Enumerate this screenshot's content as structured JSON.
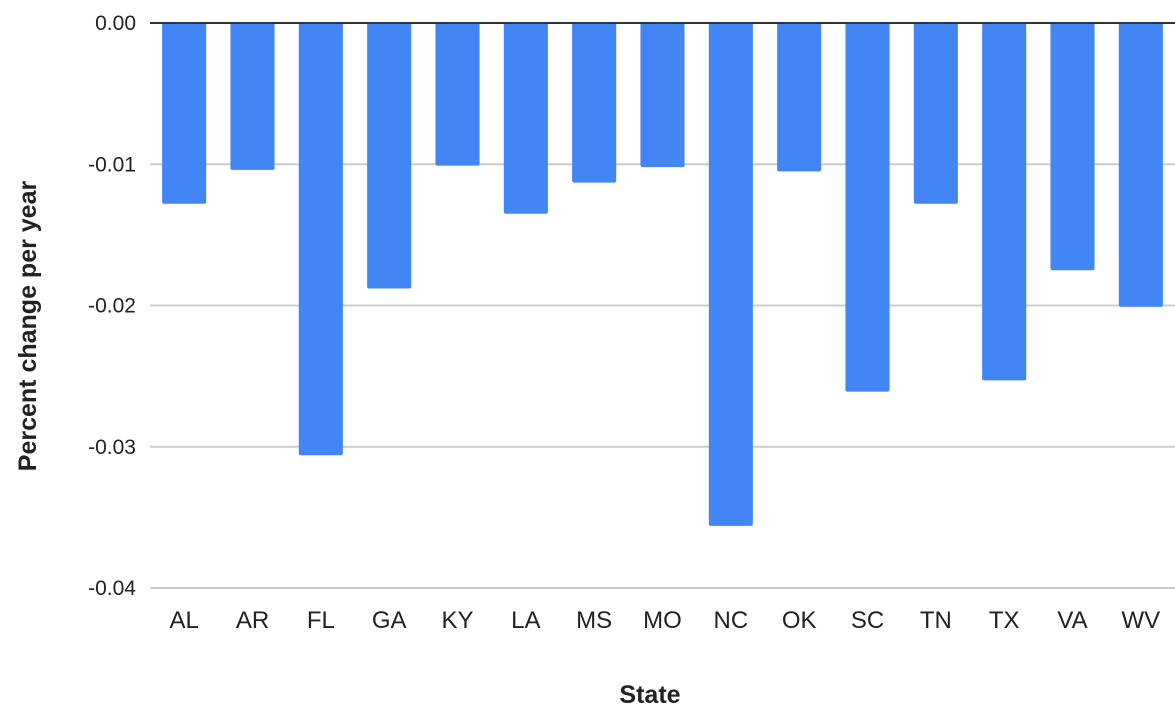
{
  "chart_data": {
    "type": "bar",
    "title": "",
    "xlabel": "State",
    "ylabel": "Percent change per year",
    "categories": [
      "AL",
      "AR",
      "FL",
      "GA",
      "KY",
      "LA",
      "MS",
      "MO",
      "NC",
      "OK",
      "SC",
      "TN",
      "TX",
      "VA",
      "WV"
    ],
    "values": [
      -0.0128,
      -0.0104,
      -0.0306,
      -0.0188,
      -0.0101,
      -0.0135,
      -0.0113,
      -0.0102,
      -0.0356,
      -0.0105,
      -0.0261,
      -0.0128,
      -0.0253,
      -0.0175,
      -0.0201
    ],
    "ylim": [
      -0.04,
      0.0
    ],
    "y_ticks": [
      0.0,
      -0.01,
      -0.02,
      -0.03,
      -0.04
    ],
    "y_tick_labels": [
      "0.00",
      "-0.01",
      "-0.02",
      "-0.03",
      "-0.04"
    ],
    "grid": true,
    "legend": "none",
    "bar_color": "#4285F4",
    "grid_color": "#cccccc",
    "zero_line_color": "#333333"
  }
}
